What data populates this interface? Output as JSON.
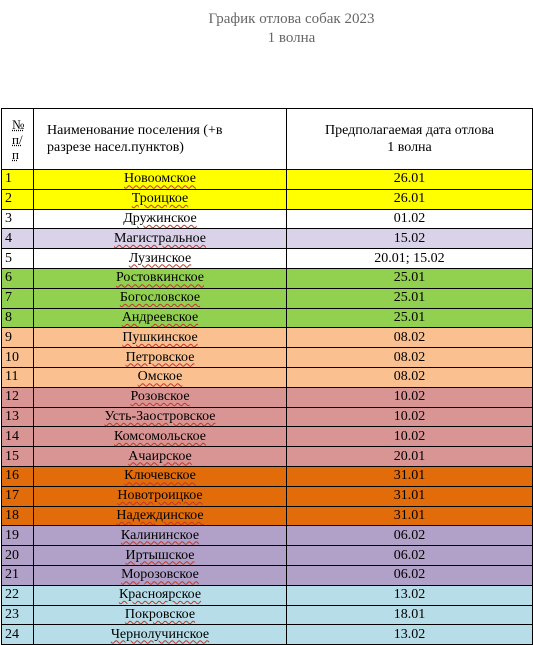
{
  "title": {
    "line1": "График отлова собак 2023",
    "line2": "1 волна"
  },
  "table": {
    "headers": {
      "num": [
        "№",
        "п/",
        "п"
      ],
      "name": [
        "Наименование поселения (+в",
        "разрезе насел.пунктов)"
      ],
      "date": [
        "Предполагаемая дата отлова",
        "1 волна"
      ]
    },
    "rows": [
      {
        "n": "1",
        "name": "Новоомское",
        "date": "26.01",
        "color": "#ffff00"
      },
      {
        "n": "2",
        "name": "Троицкое",
        "date": "26.01",
        "color": "#ffff00"
      },
      {
        "n": "3",
        "name": "Дружинское",
        "date": "01.02",
        "color": "#ffffff"
      },
      {
        "n": "4",
        "name": "Магистральное",
        "date": "15.02",
        "color": "#d9d2e9"
      },
      {
        "n": "5",
        "name": "Лузинское",
        "date": "20.01; 15.02",
        "color": "#ffffff"
      },
      {
        "n": "6",
        "name": "Ростовкинское",
        "date": "25.01",
        "color": "#92d050"
      },
      {
        "n": "7",
        "name": "Богословское",
        "date": "25.01",
        "color": "#92d050"
      },
      {
        "n": "8",
        "name": "Андреевское",
        "date": "25.01",
        "color": "#92d050"
      },
      {
        "n": "9",
        "name": "Пушкинское",
        "date": "08.02",
        "color": "#fac090"
      },
      {
        "n": "10",
        "name": "Петровское",
        "date": "08.02",
        "color": "#fac090"
      },
      {
        "n": "11",
        "name": "Омское",
        "date": "08.02",
        "color": "#fac090"
      },
      {
        "n": "12",
        "name": "Розовское",
        "date": "10.02",
        "color": "#d99594"
      },
      {
        "n": "13",
        "name": "Усть-Заостровское",
        "date": "10.02",
        "color": "#d99594"
      },
      {
        "n": "14",
        "name": "Комсомольское",
        "date": "10.02",
        "color": "#d99594"
      },
      {
        "n": "15",
        "name": "Ачаирское",
        "date": "20.01",
        "color": "#d99594"
      },
      {
        "n": "16",
        "name": "Ключевское",
        "date": "31.01",
        "color": "#e26b0a"
      },
      {
        "n": "17",
        "name": "Новотроицкое",
        "date": "31.01",
        "color": "#e26b0a"
      },
      {
        "n": "18",
        "name": "Надеждинское",
        "date": "31.01",
        "color": "#e26b0a"
      },
      {
        "n": "19",
        "name": "Калининское",
        "date": "06.02",
        "color": "#b1a0c7"
      },
      {
        "n": "20",
        "name": "Иртышское",
        "date": "06.02",
        "color": "#b1a0c7"
      },
      {
        "n": "21",
        "name": "Морозовское",
        "date": "06.02",
        "color": "#b1a0c7"
      },
      {
        "n": "22",
        "name": "Красноярское",
        "date": "13.02",
        "color": "#b7dee8"
      },
      {
        "n": "23",
        "name": "Покровское",
        "date": "18.01",
        "color": "#b7dee8"
      },
      {
        "n": "24",
        "name": "Чернолучинское",
        "date": "13.02",
        "color": "#b7dee8"
      }
    ]
  }
}
